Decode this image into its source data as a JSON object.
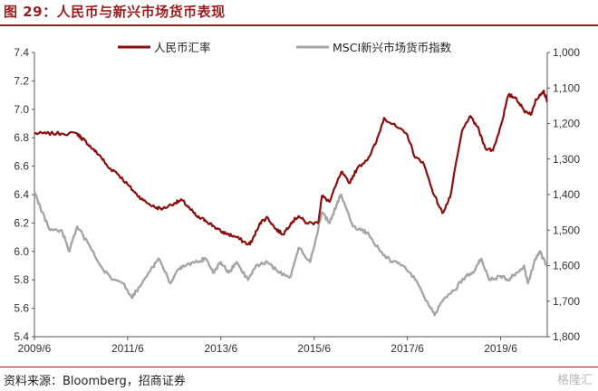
{
  "header": {
    "figure_title": "图 29：人民币与新兴市场货币表现"
  },
  "footer": {
    "source": "资料来源：Bloomberg，招商证券",
    "watermark": "格隆汇"
  },
  "colors": {
    "accent": "#9b1c1c",
    "series_cny": "#8b0f0f",
    "series_msci": "#a6a6a6",
    "axis": "#555555"
  },
  "chart_data": {
    "type": "line",
    "title": "",
    "xlabel": "",
    "ylabel": "",
    "x_ticks": [
      "2009/6",
      "2011/6",
      "2013/6",
      "2015/6",
      "2017/6",
      "2019/6"
    ],
    "y_left": {
      "ticks": [
        "5.4",
        "5.6",
        "5.8",
        "6.0",
        "6.2",
        "6.4",
        "6.6",
        "6.8",
        "7.0",
        "7.2",
        "7.4"
      ],
      "lim": [
        5.4,
        7.4
      ]
    },
    "y_right": {
      "ticks": [
        "1,000",
        "1,100",
        "1,200",
        "1,300",
        "1,400",
        "1,500",
        "1,600",
        "1,700",
        "1,800"
      ],
      "lim": [
        1000,
        1800
      ],
      "inverted": true
    },
    "legend": {
      "placement": "top-center"
    },
    "series": [
      {
        "name": "人民币汇率",
        "axis": "left",
        "x": [
          "2009-06",
          "2009-09",
          "2010-01",
          "2010-05",
          "2010-06",
          "2010-07",
          "2010-09",
          "2010-11",
          "2011-01",
          "2011-03",
          "2011-06",
          "2011-08",
          "2011-10",
          "2012-01",
          "2012-03",
          "2012-06",
          "2012-08",
          "2012-10",
          "2012-12",
          "2013-02",
          "2013-04",
          "2013-06",
          "2013-08",
          "2013-10",
          "2014-01",
          "2014-02",
          "2014-04",
          "2014-06",
          "2014-08",
          "2014-10",
          "2014-12",
          "2015-02",
          "2015-04",
          "2015-07",
          "2015-08",
          "2015-10",
          "2016-01",
          "2016-03",
          "2016-05",
          "2016-08",
          "2016-10",
          "2016-12",
          "2017-03",
          "2017-06",
          "2017-08",
          "2017-10",
          "2018-01",
          "2018-03",
          "2018-05",
          "2018-08",
          "2018-10",
          "2018-12",
          "2019-02",
          "2019-04",
          "2019-06",
          "2019-08",
          "2019-10",
          "2019-12",
          "2020-02",
          "2020-03",
          "2020-05",
          "2020-06"
        ],
        "values": [
          6.83,
          6.83,
          6.83,
          6.83,
          6.8,
          6.78,
          6.72,
          6.67,
          6.59,
          6.56,
          6.47,
          6.41,
          6.36,
          6.31,
          6.3,
          6.34,
          6.36,
          6.3,
          6.24,
          6.22,
          6.18,
          6.14,
          6.12,
          6.1,
          6.05,
          6.07,
          6.2,
          6.24,
          6.16,
          6.12,
          6.2,
          6.25,
          6.2,
          6.2,
          6.39,
          6.35,
          6.56,
          6.48,
          6.58,
          6.66,
          6.77,
          6.94,
          6.88,
          6.82,
          6.66,
          6.63,
          6.39,
          6.27,
          6.38,
          6.84,
          6.95,
          6.88,
          6.73,
          6.71,
          6.88,
          7.1,
          7.08,
          6.99,
          6.97,
          7.07,
          7.13,
          7.06
        ]
      },
      {
        "name": "MSCI新兴市场货币指数",
        "axis": "right",
        "x": [
          "2009-06",
          "2009-08",
          "2009-10",
          "2010-01",
          "2010-03",
          "2010-05",
          "2010-08",
          "2010-11",
          "2011-02",
          "2011-05",
          "2011-07",
          "2011-09",
          "2011-12",
          "2012-02",
          "2012-05",
          "2012-07",
          "2012-09",
          "2012-12",
          "2013-02",
          "2013-04",
          "2013-06",
          "2013-08",
          "2013-10",
          "2014-01",
          "2014-03",
          "2014-06",
          "2014-09",
          "2014-12",
          "2015-02",
          "2015-05",
          "2015-08",
          "2015-10",
          "2015-12",
          "2016-01",
          "2016-04",
          "2016-06",
          "2016-08",
          "2016-11",
          "2017-02",
          "2017-05",
          "2017-08",
          "2017-11",
          "2018-01",
          "2018-03",
          "2018-06",
          "2018-09",
          "2018-11",
          "2019-01",
          "2019-03",
          "2019-06",
          "2019-08",
          "2019-10",
          "2019-12",
          "2020-01",
          "2020-03",
          "2020-04",
          "2020-06"
        ],
        "values": [
          1390,
          1450,
          1500,
          1500,
          1560,
          1490,
          1540,
          1600,
          1640,
          1650,
          1690,
          1660,
          1610,
          1580,
          1650,
          1610,
          1600,
          1590,
          1580,
          1620,
          1590,
          1620,
          1590,
          1640,
          1600,
          1590,
          1620,
          1630,
          1550,
          1590,
          1450,
          1480,
          1420,
          1400,
          1490,
          1500,
          1510,
          1560,
          1590,
          1600,
          1640,
          1700,
          1740,
          1700,
          1670,
          1630,
          1620,
          1580,
          1640,
          1630,
          1640,
          1620,
          1600,
          1650,
          1580,
          1560,
          1600
        ]
      }
    ]
  }
}
